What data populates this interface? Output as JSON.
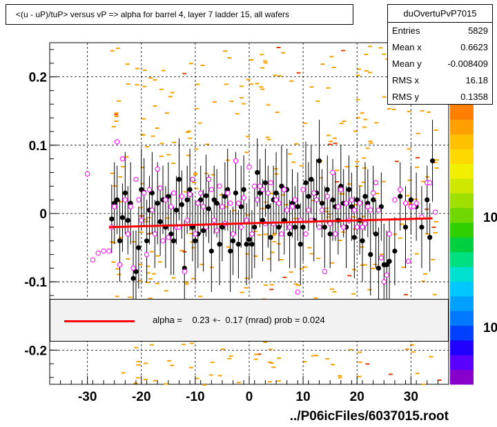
{
  "title": "<(u - uP)/tuP> versus   vP => alpha for barrel 4, layer 7 ladder 15, all wafers",
  "stats": {
    "name": "duOvertuPvP7015",
    "rows": [
      {
        "label": "Entries",
        "value": "5829"
      },
      {
        "label": "Mean x",
        "value": "0.6623"
      },
      {
        "label": "Mean y",
        "value": "-0.008409"
      },
      {
        "label": "RMS x",
        "value": "16.18"
      },
      {
        "label": "RMS y",
        "value": "0.1358"
      }
    ]
  },
  "fit": {
    "label": "alpha =    0.23 +-  0.17 (mrad) prob = 0.024",
    "color": "#ff0000"
  },
  "footer": "../P06icFiles/6037015.root",
  "palette_labels": [
    "10",
    "10"
  ],
  "chart_data": {
    "type": "scatter",
    "title": "<(u - uP)/tuP> versus   vP => alpha for barrel 4, layer 7 ladder 15, all wafers",
    "xlim": [
      -37,
      37
    ],
    "ylim": [
      -0.25,
      0.25
    ],
    "x_ticks": [
      -30,
      -20,
      -10,
      0,
      10,
      20,
      30
    ],
    "y_ticks": [
      0.2,
      0.1,
      0,
      -0.1,
      -0.2
    ],
    "x_tick_labels": [
      "-30",
      "-20",
      "-10",
      "0",
      "10",
      "20",
      "30"
    ],
    "y_tick_labels": [
      "0.2",
      "0.1",
      "0",
      "-0.1",
      "-0.2"
    ],
    "grid": true,
    "fit_line": {
      "x": [
        -26,
        34
      ],
      "y": [
        -0.02,
        -0.007
      ],
      "color": "#ff0000"
    },
    "series": [
      {
        "marker": "filled-circle",
        "color": "#000000",
        "points": [
          [
            -25.5,
            -0.008,
            0.05
          ],
          [
            -25,
            0.015,
            0.06
          ],
          [
            -24.5,
            0.02,
            0.05
          ],
          [
            -24,
            -0.04,
            0.06
          ],
          [
            -23.5,
            -0.006,
            0.05
          ],
          [
            -23,
            0.03,
            0.06
          ],
          [
            -22.5,
            -0.01,
            0.05
          ],
          [
            -22,
            0.015,
            0.06
          ],
          [
            -21.5,
            -0.095,
            0.07
          ],
          [
            -21,
            -0.085,
            0.06
          ],
          [
            -20.5,
            -0.05,
            0.06
          ],
          [
            -20,
            0.035,
            0.06
          ],
          [
            -19.5,
            0.031,
            0.05
          ],
          [
            -19,
            -0.04,
            0.06
          ],
          [
            -18.5,
            0.005,
            0.05
          ],
          [
            -18,
            0.03,
            0.06
          ],
          [
            -17.5,
            -0.03,
            0.05
          ],
          [
            -17,
            0.015,
            0.06
          ],
          [
            -16.5,
            -0.012,
            0.05
          ],
          [
            -16,
            0.02,
            0.05
          ],
          [
            -15.5,
            -0.02,
            0.06
          ],
          [
            -15,
            0.025,
            0.05
          ],
          [
            -14.5,
            -0.03,
            0.06
          ],
          [
            -14,
            -0.04,
            0.05
          ],
          [
            -13.5,
            0.005,
            0.05
          ],
          [
            -13,
            0.05,
            0.06
          ],
          [
            -12.5,
            0.013,
            0.05
          ],
          [
            -12,
            -0.08,
            0.07
          ],
          [
            -11.5,
            0.02,
            0.05
          ],
          [
            -11,
            0.035,
            0.06
          ],
          [
            -10.5,
            -0.02,
            0.05
          ],
          [
            -10,
            -0.04,
            0.06
          ],
          [
            -9.5,
            -0.03,
            0.05
          ],
          [
            -9,
            0.02,
            0.05
          ],
          [
            -8.5,
            -0.025,
            0.06
          ],
          [
            -8,
            0.026,
            0.06
          ],
          [
            -7.5,
            0.007,
            0.05
          ],
          [
            -7,
            -0.055,
            0.06
          ],
          [
            -6.5,
            0.02,
            0.05
          ],
          [
            -6,
            0.015,
            0.05
          ],
          [
            -5.5,
            -0.045,
            0.06
          ],
          [
            -5,
            -0.02,
            0.05
          ],
          [
            -4.5,
            0.025,
            0.05
          ],
          [
            -4,
            0.035,
            0.06
          ],
          [
            -3.5,
            -0.055,
            0.06
          ],
          [
            -3,
            -0.04,
            0.05
          ],
          [
            -2.5,
            0.03,
            0.06
          ],
          [
            -2,
            -0.045,
            0.05
          ],
          [
            -1.5,
            0.01,
            0.06
          ],
          [
            -1,
            0.035,
            0.05
          ],
          [
            -0.5,
            -0.045,
            0.06
          ],
          [
            0,
            -0.038,
            0.06
          ],
          [
            0.5,
            -0.045,
            0.05
          ],
          [
            1,
            -0.02,
            0.06
          ],
          [
            1.5,
            0.06,
            0.05
          ],
          [
            2,
            0.03,
            0.05
          ],
          [
            2.5,
            -0.01,
            0.06
          ],
          [
            3,
            0.045,
            0.05
          ],
          [
            3.5,
            0.01,
            0.06
          ],
          [
            4,
            -0.035,
            0.05
          ],
          [
            4.5,
            0.02,
            0.05
          ],
          [
            5,
            0.03,
            0.06
          ],
          [
            5.5,
            -0.02,
            0.05
          ],
          [
            6,
            0.04,
            0.06
          ],
          [
            6.5,
            -0.01,
            0.05
          ],
          [
            7,
            0.035,
            0.06
          ],
          [
            7.5,
            -0.03,
            0.05
          ],
          [
            8,
            0.015,
            0.05
          ],
          [
            8.5,
            -0.02,
            0.06
          ],
          [
            9,
            0.01,
            0.05
          ],
          [
            9.5,
            -0.045,
            0.06
          ],
          [
            10,
            -0.02,
            0.05
          ],
          [
            10.5,
            0.045,
            0.06
          ],
          [
            11,
            0.025,
            0.05
          ],
          [
            11.5,
            0.05,
            0.05
          ],
          [
            12,
            -0.01,
            0.06
          ],
          [
            12.5,
            0.03,
            0.05
          ],
          [
            13,
            0.077,
            0.06
          ],
          [
            13.5,
            0.015,
            0.05
          ],
          [
            14,
            -0.02,
            0.06
          ],
          [
            14.5,
            0.035,
            0.05
          ],
          [
            15,
            -0.03,
            0.05
          ],
          [
            15.5,
            0.02,
            0.06
          ],
          [
            16,
            0.01,
            0.05
          ],
          [
            16.5,
            -0.01,
            0.05
          ],
          [
            17,
            0.04,
            0.06
          ],
          [
            17.5,
            0.015,
            0.05
          ],
          [
            18,
            -0.02,
            0.06
          ],
          [
            18.5,
            0.035,
            0.05
          ],
          [
            19,
            0.01,
            0.05
          ],
          [
            19.5,
            -0.035,
            0.06
          ],
          [
            20,
            0.02,
            0.05
          ],
          [
            20.5,
            -0.01,
            0.05
          ],
          [
            21,
            -0.04,
            0.06
          ],
          [
            21.5,
            0.025,
            0.05
          ],
          [
            22,
            0.015,
            0.05
          ],
          [
            22.5,
            -0.06,
            0.06
          ],
          [
            23,
            0.02,
            0.05
          ],
          [
            23.5,
            -0.03,
            0.05
          ],
          [
            24,
            -0.08,
            0.06
          ],
          [
            24.5,
            0.01,
            0.05
          ],
          [
            25,
            -0.075,
            0.06
          ],
          [
            25.5,
            -0.075,
            0.05
          ],
          [
            26,
            -0.07,
            0.06
          ],
          [
            27,
            -0.055,
            0.05
          ],
          [
            28,
            0.025,
            0.05
          ],
          [
            29,
            -0.02,
            0.06
          ],
          [
            30,
            0.02,
            0.05
          ],
          [
            31,
            0.01,
            0.05
          ],
          [
            32,
            -0.02,
            0.06
          ],
          [
            33,
            0.02,
            0.05
          ],
          [
            33.5,
            -0.035,
            0.05
          ],
          [
            34,
            0.077,
            0.06
          ]
        ]
      },
      {
        "marker": "open-circle",
        "color": "#ff00ff",
        "points": [
          [
            -30,
            0.058
          ],
          [
            -29,
            -0.068
          ],
          [
            -28,
            -0.058
          ],
          [
            -27,
            -0.055
          ],
          [
            -26,
            -0.055
          ],
          [
            -25.5,
            -0.02
          ],
          [
            -25,
            0.01
          ],
          [
            -24.5,
            0.105
          ],
          [
            -24,
            -0.075
          ],
          [
            -23.5,
            0.08
          ],
          [
            -23,
            0.02
          ],
          [
            -22.5,
            -0.03
          ],
          [
            -22,
            0.01
          ],
          [
            -21.5,
            -0.08
          ],
          [
            -21,
            0.05
          ],
          [
            -20.5,
            0.02
          ],
          [
            -20,
            -0.01
          ],
          [
            -19.5,
            0.03
          ],
          [
            -19,
            -0.06
          ],
          [
            -18.5,
            0.035
          ],
          [
            -18,
            0.005
          ],
          [
            -17.5,
            -0.03
          ],
          [
            -17,
            0.065
          ],
          [
            -16.5,
            0.037
          ],
          [
            -16,
            -0.04
          ],
          [
            -15.5,
            0.02
          ],
          [
            -15,
            -0.035
          ],
          [
            -14.5,
            0.01
          ],
          [
            -14,
            0.03
          ],
          [
            -13.5,
            -0.02
          ],
          [
            -13,
            -0.02
          ],
          [
            -12.5,
            0.025
          ],
          [
            -12,
            -0.085
          ],
          [
            -11.5,
            -0.01
          ],
          [
            -11,
            0.028
          ],
          [
            -10.5,
            0.05
          ],
          [
            -10,
            -0.03
          ],
          [
            -9.5,
            0.015
          ],
          [
            -9,
            0.03
          ],
          [
            -8.5,
            0.01
          ],
          [
            -8,
            -0.02
          ],
          [
            -7.5,
            0.05
          ],
          [
            -7,
            0.035
          ],
          [
            -6.5,
            -0.01
          ],
          [
            -6,
            -0.025
          ],
          [
            -5.5,
            0.04
          ],
          [
            -5,
            0.01
          ],
          [
            -4.5,
            -0.015
          ],
          [
            -4,
            0.03
          ],
          [
            -3.5,
            0.015
          ],
          [
            -3,
            -0.03
          ],
          [
            -2.5,
            0.077
          ],
          [
            -2,
            0.015
          ],
          [
            -1.5,
            -0.02
          ],
          [
            -1,
            0.023
          ],
          [
            -0.5,
            -0.01
          ],
          [
            0,
            0.068
          ],
          [
            0.5,
            -0.03
          ],
          [
            1,
            0.04
          ],
          [
            1.5,
            0.02
          ],
          [
            2,
            0.04
          ],
          [
            2.5,
            0.035
          ],
          [
            3,
            -0.015
          ],
          [
            3.5,
            0.03
          ],
          [
            4,
            0.045
          ],
          [
            4.5,
            -0.015
          ],
          [
            5,
            0.02
          ],
          [
            5.5,
            0.015
          ],
          [
            6,
            -0.03
          ],
          [
            6.5,
            0.035
          ],
          [
            7,
            0.005
          ],
          [
            7.5,
            -0.02
          ],
          [
            8,
            0.01
          ],
          [
            8.5,
            0.02
          ],
          [
            9,
            -0.115
          ],
          [
            9.5,
            -0.01
          ],
          [
            10,
            0.035
          ],
          [
            10.5,
            -0.03
          ],
          [
            11,
            0.005
          ],
          [
            11.5,
            -0.01
          ],
          [
            12,
            0.03
          ],
          [
            12.5,
            0.02
          ],
          [
            13,
            -0.02
          ],
          [
            13.5,
            0.005
          ],
          [
            14,
            -0.085
          ],
          [
            14.5,
            0.025
          ],
          [
            15,
            -0.015
          ],
          [
            15.5,
            0.06
          ],
          [
            16,
            -0.03
          ],
          [
            16.5,
            0.01
          ],
          [
            17,
            0.035
          ],
          [
            17.5,
            -0.02
          ],
          [
            18,
            0.015
          ],
          [
            18.5,
            -0.01
          ],
          [
            19,
            0.02
          ],
          [
            19.5,
            0.005
          ],
          [
            20,
            -0.02
          ],
          [
            20.5,
            0.015
          ],
          [
            21,
            -0.02
          ],
          [
            21.5,
            -0.015
          ],
          [
            22,
            0.01
          ],
          [
            22.5,
            0.005
          ],
          [
            23,
            0.03
          ],
          [
            23.5,
            0.045
          ],
          [
            24,
            0.005
          ],
          [
            24.5,
            -0.065
          ],
          [
            25,
            -0.1
          ],
          [
            25.5,
            -0.09
          ],
          [
            26,
            -0.03
          ],
          [
            27,
            0.02
          ],
          [
            28,
            0.035
          ],
          [
            29,
            0.015
          ],
          [
            29.5,
            -0.07
          ],
          [
            30,
            0.01
          ],
          [
            30.5,
            0.01
          ],
          [
            31,
            0.015
          ],
          [
            32,
            -0.005
          ],
          [
            33,
            0.045
          ],
          [
            33.5,
            0.045
          ],
          [
            34.5,
            0.002
          ]
        ]
      }
    ]
  }
}
